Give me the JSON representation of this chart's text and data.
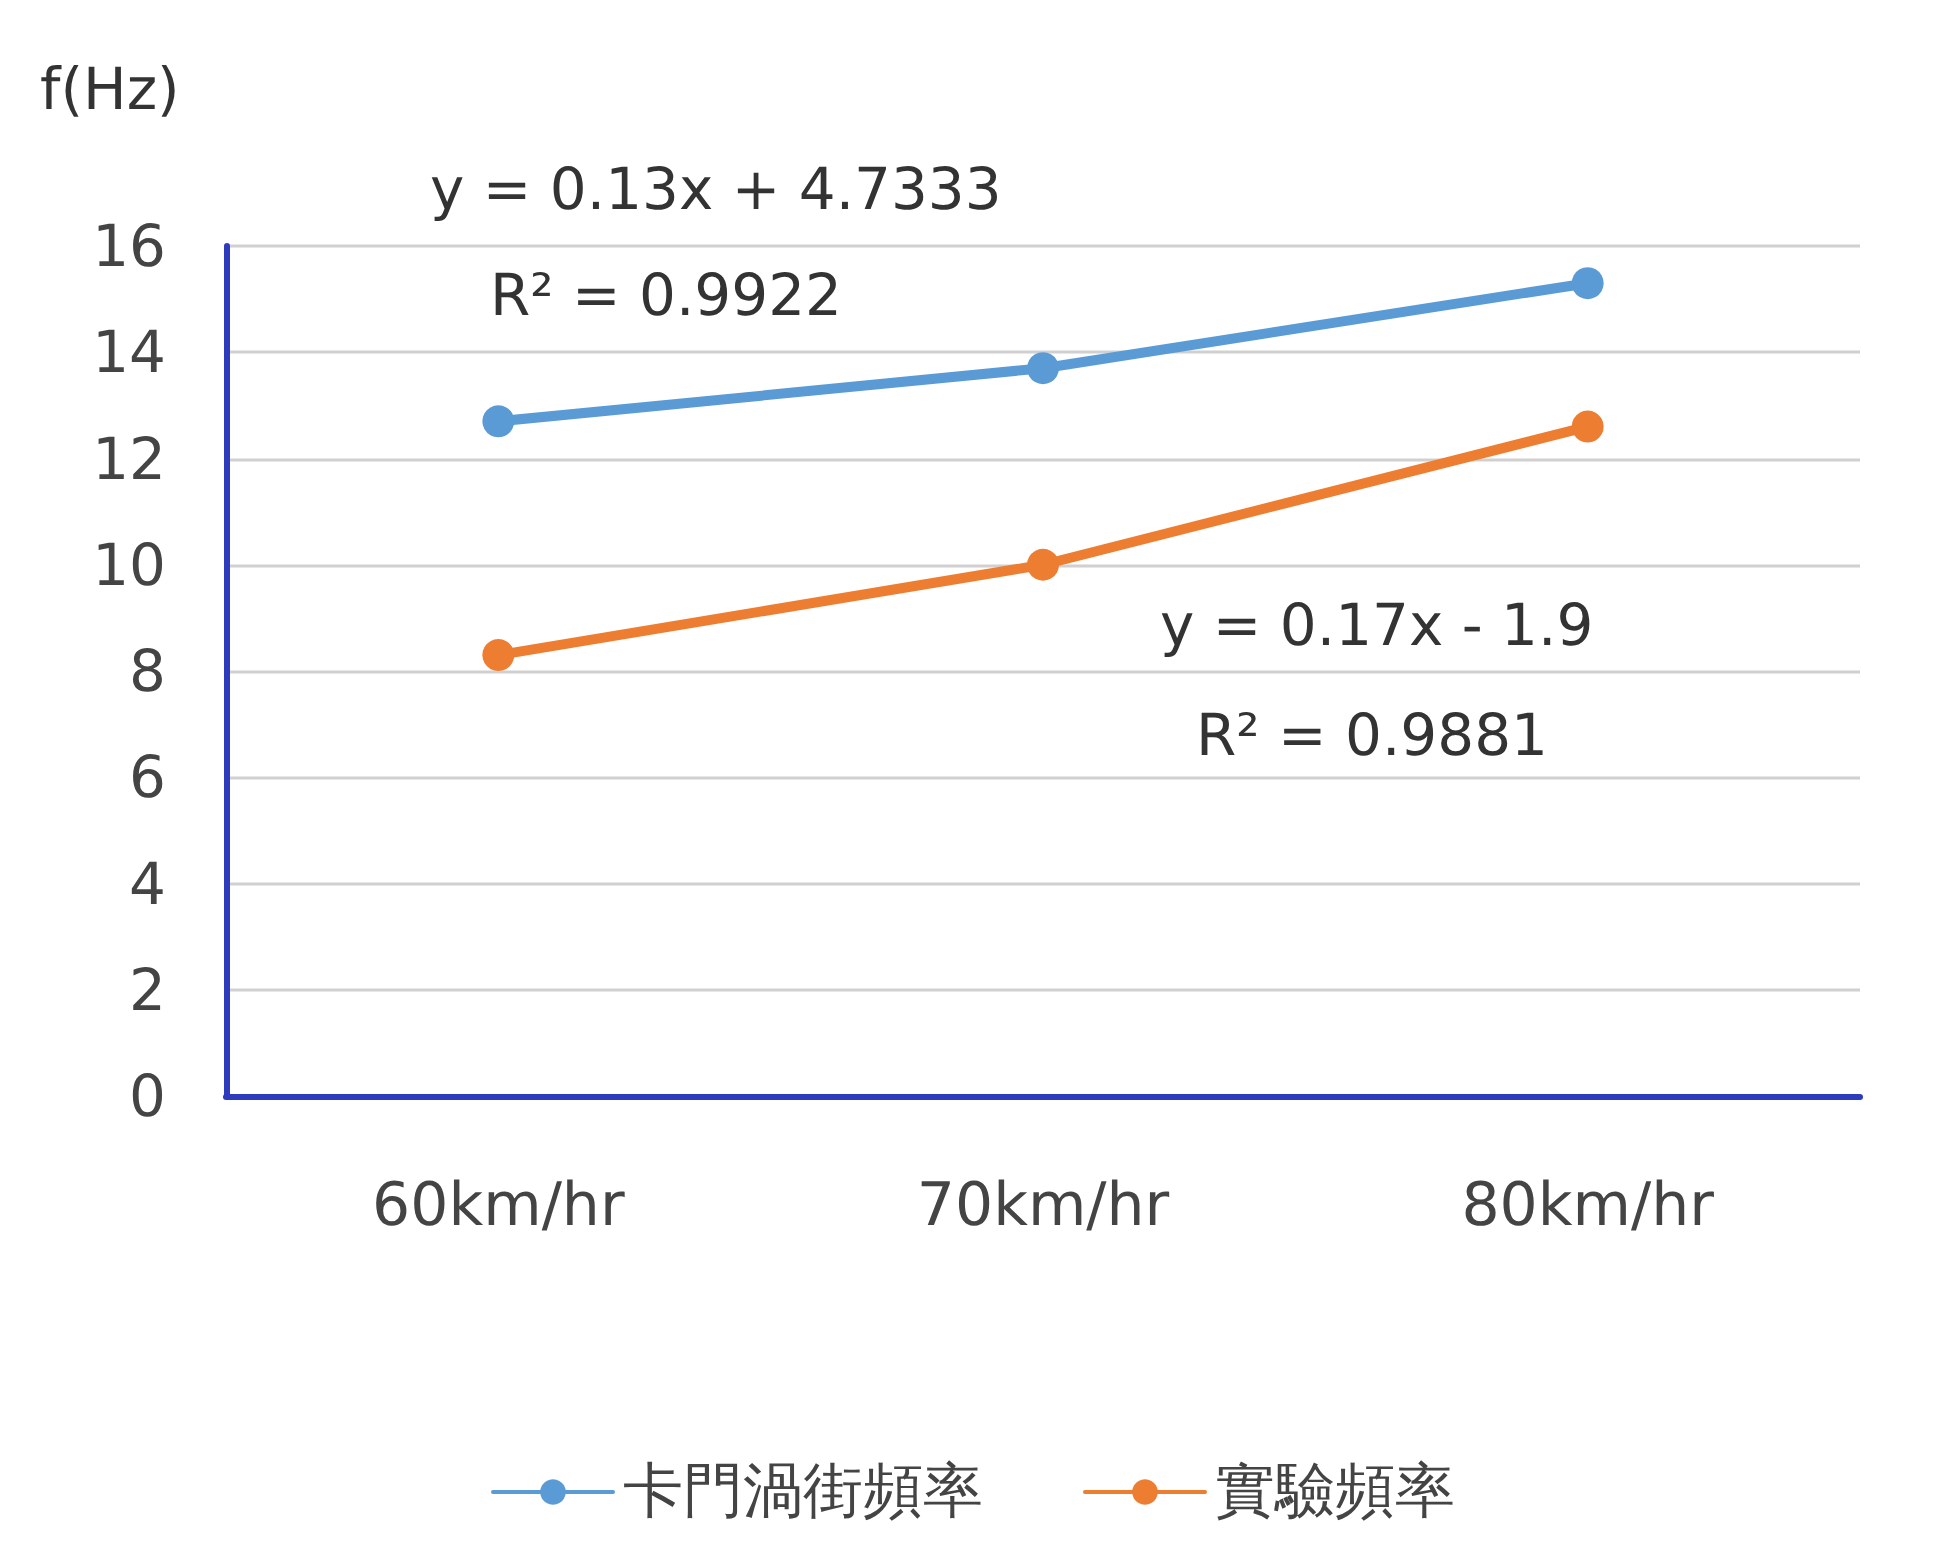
{
  "chart_data": {
    "type": "line",
    "ylabel": "f(Hz)",
    "categories": [
      "60km/hr",
      "70km/hr",
      "80km/hr"
    ],
    "series": [
      {
        "name": "卡門渦街頻率",
        "color": "#5b9bd5",
        "values": [
          12.7,
          13.7,
          15.3
        ]
      },
      {
        "name": "實驗頻率",
        "color": "#ed7d31",
        "values": [
          8.3,
          10.0,
          12.6
        ]
      }
    ],
    "ylim": [
      0,
      16
    ],
    "yticks": [
      0,
      2,
      4,
      6,
      8,
      10,
      12,
      14,
      16
    ],
    "grid": "y",
    "legend": "bottom",
    "marker": "circle",
    "line_style": "solid",
    "annotations": [
      "y = 0.13x + 4.7333",
      "R² = 0.9922",
      "y = 0.17x - 1.9",
      "R² = 0.9881"
    ]
  }
}
